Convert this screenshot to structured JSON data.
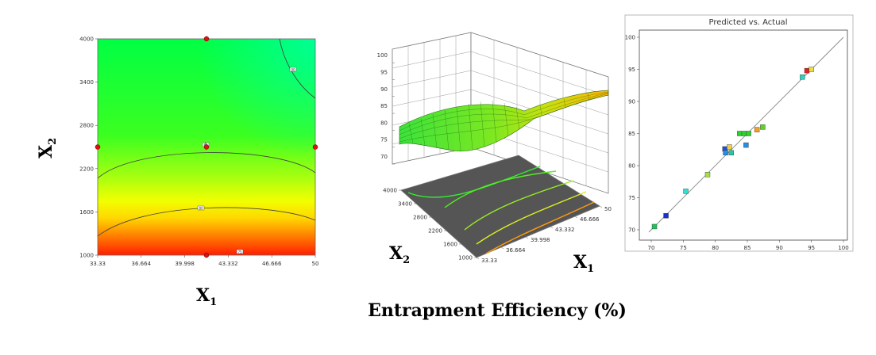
{
  "caption": "Entrapment Efficiency (%)",
  "chart_data": [
    {
      "type": "contour",
      "xlabel": "X",
      "xlabel_sub": "1",
      "ylabel": "X",
      "ylabel_sub": "2",
      "xlim": [
        33.33,
        50
      ],
      "ylim": [
        1000,
        4000
      ],
      "x_ticks": [
        "33.33",
        "36.664",
        "39.998",
        "43.332",
        "46.666",
        "50"
      ],
      "y_ticks": [
        "1000",
        "1600",
        "2200",
        "2800",
        "3400",
        "4000"
      ],
      "contour_levels": [
        75,
        80,
        85,
        90
      ],
      "contour_tags": [
        "75",
        "80",
        "85",
        "90"
      ],
      "color_low": "#ff2000",
      "color_mid": "#ffff00",
      "color_high": "#00ff3c",
      "design_points": [
        {
          "x": 41.665,
          "y": 4000
        },
        {
          "x": 33.33,
          "y": 2500
        },
        {
          "x": 41.665,
          "y": 2500
        },
        {
          "x": 50,
          "y": 2500
        },
        {
          "x": 41.665,
          "y": 1000
        }
      ],
      "center_point_count": "5"
    },
    {
      "type": "surface3d",
      "xlabel": "X",
      "xlabel_sub": "1",
      "ylabel": "X",
      "ylabel_sub": "2",
      "z_ticks": [
        "70",
        "75",
        "80",
        "85",
        "90",
        "95",
        "100"
      ],
      "x_ticks": [
        "33.33",
        "36.664",
        "39.998",
        "43.332",
        "46.666",
        "50"
      ],
      "y_ticks": [
        "1000",
        "1600",
        "2200",
        "2800",
        "3400",
        "4000"
      ],
      "zlim": [
        70,
        100
      ]
    },
    {
      "type": "scatter",
      "title": "Predicted vs. Actual",
      "xlim": [
        70,
        100
      ],
      "ylim": [
        70,
        100
      ],
      "x_ticks": [
        "70",
        "75",
        "80",
        "85",
        "90",
        "95",
        "100"
      ],
      "y_ticks": [
        "70",
        "75",
        "80",
        "85",
        "90",
        "95",
        "100"
      ],
      "points": [
        {
          "x": 70.5,
          "y": 70.5,
          "color": "#22c05a"
        },
        {
          "x": 72.3,
          "y": 72.2,
          "color": "#1a30d0"
        },
        {
          "x": 75.4,
          "y": 76.0,
          "color": "#30e0d0"
        },
        {
          "x": 78.8,
          "y": 78.6,
          "color": "#a0e040"
        },
        {
          "x": 81.5,
          "y": 82.6,
          "color": "#2050e0"
        },
        {
          "x": 81.6,
          "y": 82.0,
          "color": "#2090e8"
        },
        {
          "x": 82.2,
          "y": 82.9,
          "color": "#f0d040"
        },
        {
          "x": 82.5,
          "y": 82.0,
          "color": "#22c8a0"
        },
        {
          "x": 83.8,
          "y": 85.0,
          "color": "#30d030"
        },
        {
          "x": 84.5,
          "y": 85.0,
          "color": "#30d030"
        },
        {
          "x": 84.8,
          "y": 83.2,
          "color": "#2090e8"
        },
        {
          "x": 85.2,
          "y": 85.0,
          "color": "#30d030"
        },
        {
          "x": 86.5,
          "y": 85.6,
          "color": "#f0a030"
        },
        {
          "x": 87.4,
          "y": 86.0,
          "color": "#60d030"
        },
        {
          "x": 93.6,
          "y": 93.8,
          "color": "#30d0c0"
        },
        {
          "x": 94.3,
          "y": 94.8,
          "color": "#e02020"
        },
        {
          "x": 95.0,
          "y": 95.0,
          "color": "#e8e040"
        }
      ]
    }
  ]
}
